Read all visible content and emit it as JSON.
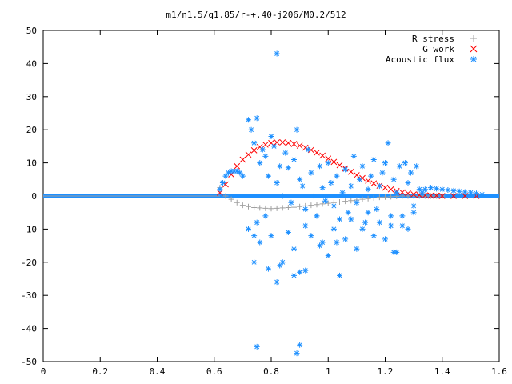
{
  "chart_data": {
    "type": "scatter",
    "title": "m1/n1.5/q1.85/r-+.40-j206/M0.2/512",
    "xlabel": "",
    "ylabel": "",
    "xlim": [
      0,
      1.6
    ],
    "ylim": [
      -50,
      50
    ],
    "x_ticks": [
      "0",
      "0.2",
      "0.4",
      "0.6",
      "0.8",
      "1",
      "1.2",
      "1.4",
      "1.6"
    ],
    "y_ticks": [
      "50",
      "40",
      "30",
      "20",
      "10",
      "0",
      "-10",
      "-20",
      "-30",
      "-40",
      "-50"
    ],
    "grid": false,
    "legend_position": "top-right",
    "series": [
      {
        "name": "R stress",
        "marker": "+",
        "color": "#a0a0a0",
        "x": [
          0.62,
          0.64,
          0.66,
          0.68,
          0.7,
          0.72,
          0.74,
          0.76,
          0.78,
          0.8,
          0.82,
          0.84,
          0.86,
          0.88,
          0.9,
          0.92,
          0.94,
          0.96,
          0.98,
          1.0,
          1.02,
          1.04,
          1.06,
          1.08,
          1.1,
          1.12,
          1.14,
          1.16,
          1.18,
          1.2,
          1.22,
          1.24,
          1.26,
          1.28,
          1.3,
          1.32,
          1.34,
          1.36,
          1.38,
          1.4
        ],
        "y": [
          2.5,
          0.0,
          -1.0,
          -2.0,
          -2.8,
          -3.2,
          -3.5,
          -3.6,
          -3.7,
          -3.8,
          -3.7,
          -3.6,
          -3.5,
          -3.4,
          -3.2,
          -3.0,
          -2.8,
          -2.6,
          -2.4,
          -2.2,
          -2.0,
          -1.8,
          -1.6,
          -1.4,
          -1.2,
          -1.0,
          -0.8,
          -0.6,
          -0.4,
          -0.3,
          -0.2,
          -0.1,
          0.0,
          0.0,
          0.0,
          0.0,
          0.0,
          0.0,
          0.0,
          0.0
        ]
      },
      {
        "name": "G work",
        "marker": "x",
        "color": "#ff0000",
        "x": [
          0.62,
          0.64,
          0.66,
          0.68,
          0.7,
          0.72,
          0.74,
          0.76,
          0.78,
          0.8,
          0.82,
          0.84,
          0.86,
          0.88,
          0.9,
          0.92,
          0.94,
          0.96,
          0.98,
          1.0,
          1.02,
          1.04,
          1.06,
          1.08,
          1.1,
          1.12,
          1.14,
          1.16,
          1.18,
          1.2,
          1.22,
          1.24,
          1.26,
          1.28,
          1.3,
          1.32,
          1.34,
          1.36,
          1.38,
          1.4,
          1.44,
          1.48,
          1.52
        ],
        "y": [
          1.0,
          3.5,
          6.5,
          9.0,
          11.0,
          12.5,
          13.8,
          14.8,
          15.5,
          16.0,
          16.2,
          16.2,
          16.0,
          15.7,
          15.2,
          14.6,
          13.9,
          13.1,
          12.2,
          11.3,
          10.3,
          9.3,
          8.3,
          7.3,
          6.3,
          5.4,
          4.6,
          3.8,
          3.1,
          2.5,
          2.0,
          1.5,
          1.1,
          0.8,
          0.5,
          0.3,
          0.2,
          0.1,
          0.1,
          0.0,
          0.0,
          0.0,
          0.0
        ]
      },
      {
        "name": "Acoustic flux",
        "marker": "*",
        "color": "#1e90ff",
        "x": [
          0.62,
          0.63,
          0.64,
          0.65,
          0.66,
          0.67,
          0.68,
          0.69,
          0.7,
          0.72,
          0.73,
          0.74,
          0.75,
          0.76,
          0.77,
          0.78,
          0.79,
          0.8,
          0.81,
          0.82,
          0.83,
          0.84,
          0.85,
          0.86,
          0.87,
          0.88,
          0.89,
          0.9,
          0.91,
          0.92,
          0.93,
          0.94,
          0.95,
          0.96,
          0.97,
          0.98,
          0.99,
          1.0,
          1.01,
          1.02,
          1.03,
          1.04,
          1.05,
          1.06,
          1.07,
          1.08,
          1.09,
          1.1,
          1.11,
          1.12,
          1.13,
          1.14,
          1.15,
          1.16,
          1.17,
          1.18,
          1.19,
          1.2,
          1.21,
          1.22,
          1.23,
          1.24,
          1.25,
          1.26,
          1.27,
          1.28,
          1.29,
          1.3,
          1.31,
          1.32,
          0.72,
          0.74,
          0.75,
          0.76,
          0.78,
          0.8,
          0.82,
          0.84,
          0.86,
          0.88,
          0.9,
          0.92,
          0.94,
          0.96,
          0.98,
          1.0,
          1.02,
          1.04,
          1.06,
          1.08,
          1.1,
          1.12,
          1.14,
          1.16,
          1.18,
          1.2,
          1.22,
          1.24,
          1.26,
          1.28,
          1.3,
          0.82,
          0.75,
          0.89,
          0.9,
          0.74,
          0.79,
          0.83,
          0.88,
          0.92,
          0.97,
          1.03,
          1.23,
          1.33,
          1.34,
          1.36,
          1.38,
          1.4,
          1.42,
          1.44,
          1.46,
          1.48,
          1.5,
          1.52,
          1.54
        ],
        "y": [
          2.0,
          4.0,
          6.0,
          7.0,
          7.5,
          7.5,
          7.5,
          7.0,
          6.0,
          23.0,
          20.0,
          16.0,
          23.5,
          10.0,
          14.0,
          12.0,
          6.0,
          18.0,
          15.0,
          4.0,
          9.0,
          0.0,
          13.0,
          8.5,
          -2.0,
          11.0,
          20.0,
          5.0,
          3.0,
          -4.0,
          14.0,
          7.0,
          0.0,
          -6.0,
          9.0,
          2.5,
          -1.5,
          10.0,
          4.0,
          -3.0,
          6.0,
          -7.0,
          1.0,
          8.0,
          -5.0,
          3.0,
          12.0,
          -2.0,
          5.0,
          9.0,
          -8.0,
          2.0,
          6.0,
          11.0,
          -4.0,
          3.0,
          7.0,
          10.0,
          16.0,
          -9.0,
          5.0,
          1.0,
          9.0,
          -6.0,
          10.0,
          4.0,
          7.0,
          -3.0,
          9.0,
          2.0,
          -10.0,
          -12.0,
          -8.0,
          -14.0,
          -6.0,
          -12.0,
          -26.0,
          -20.0,
          -11.0,
          -16.0,
          -23.0,
          -9.0,
          -12.0,
          -6.0,
          -14.0,
          -18.0,
          -10.0,
          -24.0,
          -13.0,
          -7.0,
          -16.0,
          -10.0,
          -5.0,
          -12.0,
          -8.0,
          -13.0,
          -6.0,
          -17.0,
          -9.0,
          -10.0,
          -5.0,
          43.0,
          -45.5,
          -47.5,
          -45.0,
          -20.0,
          -22.0,
          -21.0,
          -24.0,
          -22.5,
          -15.0,
          -14.0,
          -17.0,
          1.0,
          2.0,
          2.5,
          2.2,
          2.0,
          1.8,
          1.6,
          1.4,
          1.2,
          1.0,
          0.8,
          0.5
        ]
      }
    ]
  }
}
